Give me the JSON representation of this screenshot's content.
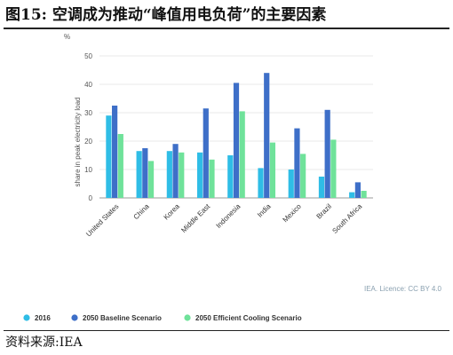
{
  "title": "图15:  空调成为推动“峰值用电负荷”的主要因素",
  "source": "资料来源:IEA",
  "chart_data": {
    "type": "bar",
    "ylabel": "share in peak electricity load",
    "yunit": "%",
    "ylim": [
      0,
      50
    ],
    "yticks": [
      0,
      10,
      20,
      30,
      40,
      50
    ],
    "grid": true,
    "legend_position": "bottom",
    "credit": "IEA. Licence: CC BY 4.0",
    "categories": [
      "United States",
      "China",
      "Korea",
      "Middle East",
      "Indonesia",
      "India",
      "Mexico",
      "Brazil",
      "South Africa"
    ],
    "series": [
      {
        "name": "2016",
        "color": "#2fbde6",
        "values": [
          29,
          16.5,
          16.5,
          16,
          15,
          10.5,
          10,
          7.5,
          2
        ]
      },
      {
        "name": "2050 Baseline Scenario",
        "color": "#3e6fc8",
        "values": [
          32.5,
          17.5,
          19,
          31.5,
          40.5,
          44,
          24.5,
          31,
          5.5
        ]
      },
      {
        "name": "2050 Efficient Cooling Scenario",
        "color": "#6fe29a",
        "values": [
          22.5,
          13,
          16,
          13.5,
          30.5,
          19.5,
          15.5,
          20.5,
          2.5
        ]
      }
    ]
  }
}
